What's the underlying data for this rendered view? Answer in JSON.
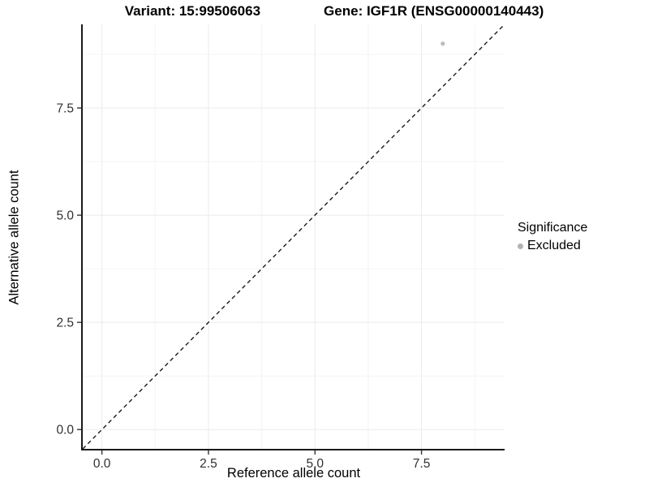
{
  "header": {
    "variant_label": "Variant: 15:99506063",
    "gene_label": "Gene: IGF1R (ENSG00000140443)"
  },
  "chart_data": {
    "type": "scatter",
    "title": "Variant: 15:99506063   Gene: IGF1R (ENSG00000140443)",
    "xlabel": "Reference allele count",
    "ylabel": "Alternative allele count",
    "xlim": [
      -0.45,
      9.45
    ],
    "ylim": [
      -0.45,
      9.45
    ],
    "x_ticks": {
      "values": [
        0,
        2.5,
        5,
        7.5
      ],
      "labels": [
        "0.0",
        "2.5",
        "5.0",
        "7.5"
      ]
    },
    "y_ticks": {
      "values": [
        0,
        2.5,
        5,
        7.5
      ],
      "labels": [
        "0.0",
        "2.5",
        "5.0",
        "7.5"
      ]
    },
    "minor_tick_values": [
      1.25,
      3.75,
      6.25,
      8.75
    ],
    "grid": true,
    "reference_line": {
      "kind": "identity",
      "style": "dashed",
      "from": [
        -0.45,
        -0.45
      ],
      "to": [
        9.45,
        9.45
      ]
    },
    "series": [
      {
        "name": "Excluded",
        "color": "#bdbdbd",
        "points": [
          {
            "x": 8,
            "y": 9
          }
        ]
      }
    ],
    "legend": {
      "title": "Significance",
      "position": "right",
      "entries": [
        {
          "label": "Excluded",
          "color": "#b3b3b3"
        }
      ]
    },
    "colors": {
      "major_grid": "#ebebeb",
      "minor_grid": "#f4f4f4",
      "axis_line": "#1a1a1a",
      "tick_mark": "#333333",
      "tick_label": "#303030",
      "reference_line": "#1a1a1a",
      "background": "#ffffff"
    }
  }
}
